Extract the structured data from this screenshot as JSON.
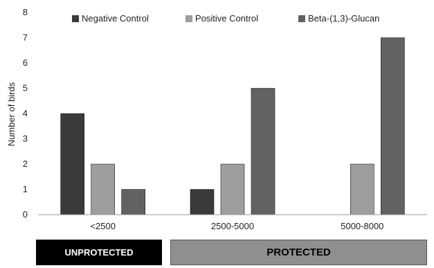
{
  "chart_data": {
    "type": "bar",
    "categories": [
      "<2500",
      "2500-5000",
      "5000-8000"
    ],
    "series": [
      {
        "name": "Negative Control",
        "values": [
          4,
          1,
          0
        ],
        "color": "#3a3a3a"
      },
      {
        "name": "Positive Control",
        "values": [
          2,
          2,
          2
        ],
        "color": "#9e9e9e"
      },
      {
        "name": "Beta-(1,3)-Glucan",
        "values": [
          1,
          5,
          7
        ],
        "color": "#626262"
      }
    ],
    "ylabel": "Number of birds",
    "ylim": [
      0,
      8
    ],
    "yticks": [
      0,
      1,
      2,
      3,
      4,
      5,
      6,
      7,
      8
    ],
    "legend": "top",
    "grid": false
  },
  "bands": {
    "unprotected": "UNPROTECTED",
    "protected": "PROTECTED"
  }
}
